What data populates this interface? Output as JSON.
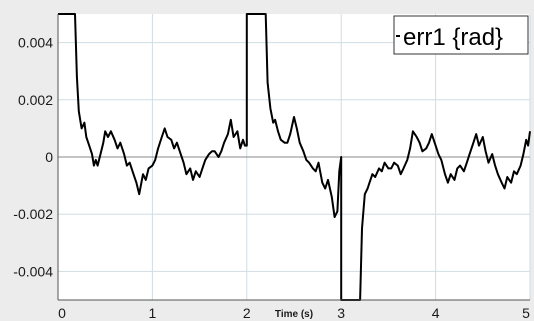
{
  "chart_data": {
    "type": "line",
    "xlabel": "Time (s)",
    "ylabel": "",
    "xlim": [
      0,
      5
    ],
    "ylim": [
      -0.005,
      0.005
    ],
    "grid": true,
    "x_ticks": [
      0,
      1,
      2,
      3,
      4,
      5
    ],
    "x_tick_labels": [
      "0",
      "1",
      "2",
      "3",
      "4",
      "5"
    ],
    "y_ticks": [
      0.004,
      0.002,
      0,
      -0.002,
      -0.004
    ],
    "y_tick_labels": [
      "0.004",
      "0.002",
      "0",
      "-0.002",
      "-0.004"
    ],
    "legend": {
      "placement": "top-right"
    },
    "series": [
      {
        "name": "err1 {rad}",
        "color": "#000000",
        "x": [
          0,
          0.18,
          0.2,
          0.22,
          0.25,
          0.28,
          0.3,
          0.33,
          0.36,
          0.38,
          0.4,
          0.42,
          0.45,
          0.48,
          0.5,
          0.53,
          0.56,
          0.6,
          0.63,
          0.66,
          0.7,
          0.73,
          0.76,
          0.8,
          0.83,
          0.86,
          0.9,
          0.93,
          0.96,
          1.0,
          1.03,
          1.06,
          1.1,
          1.13,
          1.16,
          1.2,
          1.23,
          1.26,
          1.3,
          1.33,
          1.36,
          1.4,
          1.43,
          1.46,
          1.5,
          1.53,
          1.56,
          1.6,
          1.63,
          1.66,
          1.7,
          1.73,
          1.76,
          1.8,
          1.83,
          1.86,
          1.9,
          1.93,
          1.96,
          1.98,
          2.0,
          2.0,
          2.2,
          2.22,
          2.25,
          2.28,
          2.3,
          2.33,
          2.36,
          2.4,
          2.43,
          2.46,
          2.5,
          2.53,
          2.56,
          2.6,
          2.63,
          2.66,
          2.7,
          2.73,
          2.76,
          2.8,
          2.83,
          2.86,
          2.9,
          2.93,
          2.96,
          2.98,
          3.0,
          3.0,
          3.2,
          3.22,
          3.25,
          3.28,
          3.3,
          3.33,
          3.36,
          3.4,
          3.43,
          3.46,
          3.5,
          3.53,
          3.56,
          3.6,
          3.63,
          3.66,
          3.7,
          3.73,
          3.76,
          3.8,
          3.83,
          3.86,
          3.9,
          3.93,
          3.96,
          4.0,
          4.03,
          4.06,
          4.1,
          4.13,
          4.16,
          4.2,
          4.23,
          4.26,
          4.3,
          4.33,
          4.36,
          4.4,
          4.43,
          4.46,
          4.5,
          4.53,
          4.56,
          4.6,
          4.63,
          4.66,
          4.7,
          4.73,
          4.76,
          4.8,
          4.83,
          4.86,
          4.9,
          4.93,
          4.96,
          4.98,
          5.0
        ],
        "y": [
          0.005,
          0.005,
          0.0028,
          0.0016,
          0.001,
          0.0012,
          0.0007,
          0.0004,
          0.0001,
          -0.0003,
          -0.0001,
          -0.0003,
          0.0001,
          0.0005,
          0.0009,
          0.0007,
          0.0009,
          0.0006,
          0.0003,
          0.0005,
          0.0001,
          -0.0003,
          -0.0002,
          -0.0006,
          -0.0009,
          -0.0013,
          -0.0006,
          -0.0008,
          -0.0004,
          -0.0003,
          -0.0001,
          0.0003,
          0.0007,
          0.001,
          0.0007,
          0.0006,
          0.0003,
          0.0005,
          0.0001,
          -0.0002,
          -0.0006,
          -0.0004,
          -0.0008,
          -0.0005,
          -0.0007,
          -0.0004,
          -0.0001,
          0.0001,
          0.0002,
          0.0002,
          0.0,
          0.0002,
          0.0005,
          0.0008,
          0.0013,
          0.0007,
          0.0009,
          0.0003,
          0.0006,
          0.0004,
          0.0004,
          0.005,
          0.005,
          0.0026,
          0.0017,
          0.0012,
          0.0013,
          0.0009,
          0.0006,
          0.0005,
          0.0005,
          0.0008,
          0.0014,
          0.001,
          0.0005,
          0.0002,
          -0.0001,
          -0.0002,
          -0.0004,
          -0.0005,
          -0.0002,
          -0.0009,
          -0.0011,
          -0.0008,
          -0.0014,
          -0.0021,
          -0.0019,
          -0.0005,
          0.0,
          -0.005,
          -0.005,
          -0.0025,
          -0.0013,
          -0.0011,
          -0.0009,
          -0.0006,
          -0.0007,
          -0.0004,
          -0.0005,
          -0.0002,
          -0.0004,
          -0.0004,
          -0.0002,
          -0.0003,
          -0.0006,
          -0.0004,
          -0.0001,
          0.0003,
          0.0009,
          0.0007,
          0.0005,
          0.0002,
          0.0003,
          0.0005,
          0.0008,
          0.0004,
          0.0001,
          -0.0001,
          -0.0006,
          -0.0009,
          -0.0006,
          -0.0008,
          -0.0004,
          -0.0003,
          -0.0005,
          -0.0002,
          0.0001,
          0.0005,
          0.0008,
          0.0004,
          0.0007,
          0.0002,
          -0.0002,
          0.0001,
          -0.0003,
          -0.0006,
          -0.0009,
          -0.0011,
          -0.0007,
          -0.0009,
          -0.0005,
          -0.0006,
          -0.0003,
          0.0001,
          0.0006,
          0.0004,
          0.0009
        ]
      }
    ]
  }
}
